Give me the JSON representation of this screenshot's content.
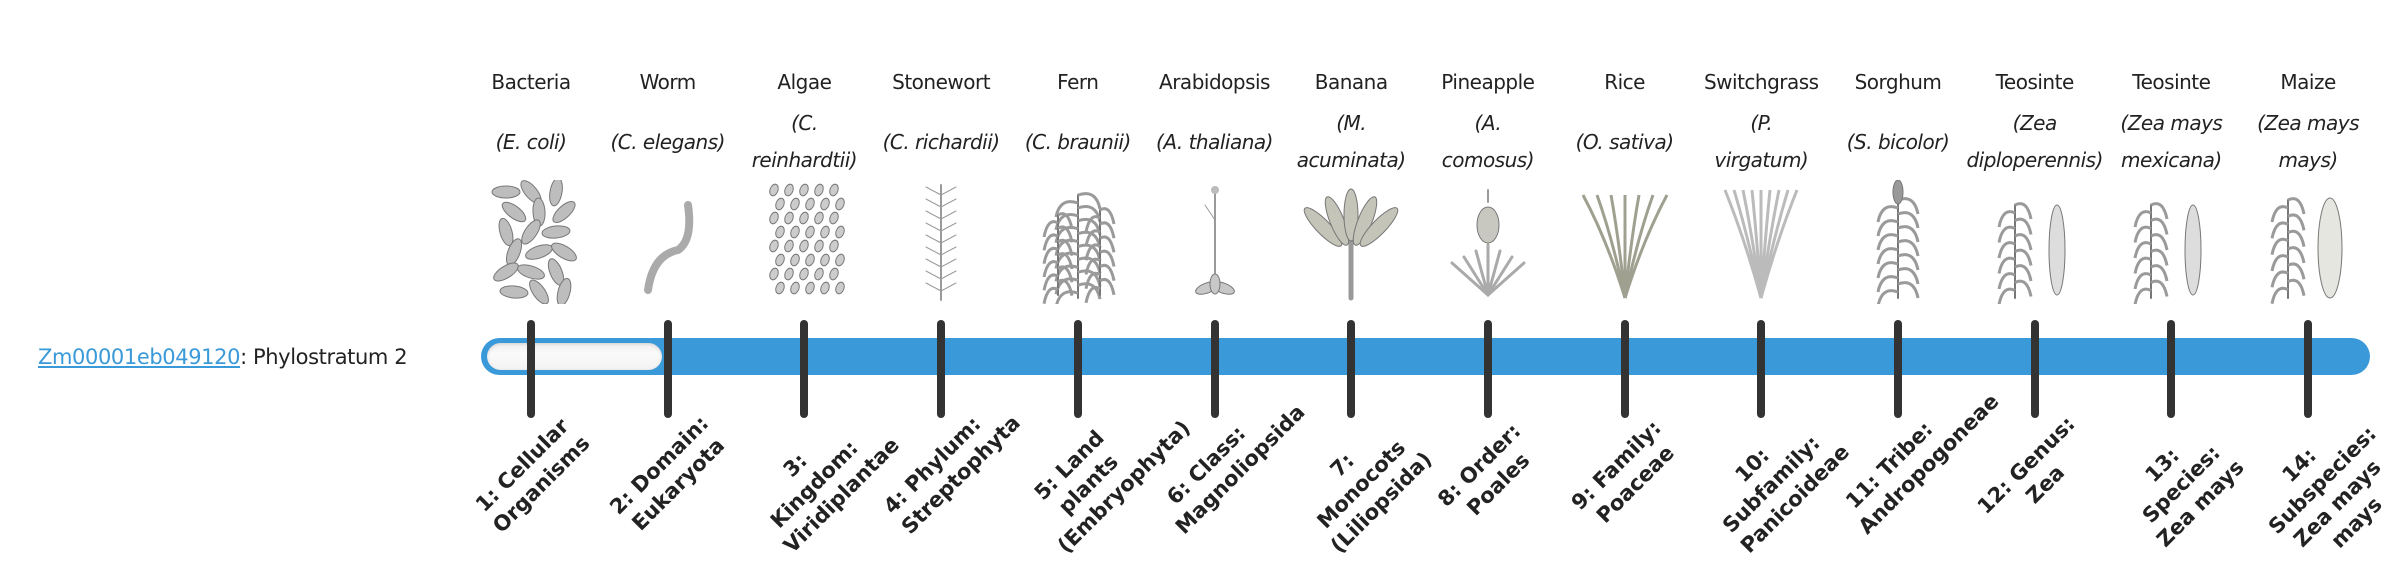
{
  "gene": {
    "id": "Zm00001eb049120",
    "suffix": ": Phylostratum 2",
    "phylostratum": 2
  },
  "colors": {
    "accent": "#3a9ad9",
    "tick": "#333333",
    "empty": "#f5f5f5"
  },
  "organisms": [
    {
      "common": "Bacteria",
      "sci": [
        "(E. coli)"
      ],
      "icon": "bacteria-icon"
    },
    {
      "common": "Worm",
      "sci": [
        "(C. elegans)"
      ],
      "icon": "worm-icon"
    },
    {
      "common": "Algae",
      "sci": [
        "(C.",
        "reinhardtii)"
      ],
      "icon": "algae-icon"
    },
    {
      "common": "Stonewort",
      "sci": [
        "(C. richardii)"
      ],
      "icon": "stonewort-icon"
    },
    {
      "common": "Fern",
      "sci": [
        "(C. braunii)"
      ],
      "icon": "fern-icon"
    },
    {
      "common": "Arabidopsis",
      "sci": [
        "(A. thaliana)"
      ],
      "icon": "arabidopsis-icon"
    },
    {
      "common": "Banana",
      "sci": [
        "(M.",
        "acuminata)"
      ],
      "icon": "banana-icon"
    },
    {
      "common": "Pineapple",
      "sci": [
        "(A.",
        "comosus)"
      ],
      "icon": "pineapple-icon"
    },
    {
      "common": "Rice",
      "sci": [
        "(O. sativa)"
      ],
      "icon": "rice-icon"
    },
    {
      "common": "Switchgrass",
      "sci": [
        "(P.",
        "virgatum)"
      ],
      "icon": "switchgrass-icon"
    },
    {
      "common": "Sorghum",
      "sci": [
        "(S. bicolor)"
      ],
      "icon": "sorghum-icon"
    },
    {
      "common": "Teosinte",
      "sci": [
        "(Zea",
        "diploperennis)"
      ],
      "icon": "teosinte-icon"
    },
    {
      "common": "Teosinte",
      "sci": [
        "(Zea mays",
        "mexicana)"
      ],
      "icon": "teosinte-icon"
    },
    {
      "common": "Maize",
      "sci": [
        "(Zea mays",
        "mays)"
      ],
      "icon": "maize-icon"
    }
  ],
  "strata": [
    "1: Cellular Organisms",
    "2: Domain: Eukaryota",
    "3: Kingdom: Viridiplantae",
    "4: Phylum: Streptophyta",
    "5: Land plants (Embryophyta)",
    "6: Class: Magnoliopsida",
    "7: Monocots (Liliopsida)",
    "8: Order: Poales",
    "9: Family: Poaceae",
    "10: Subfamily: Panicoideae",
    "11: Tribe: Andropogoneae",
    "12: Genus: Zea",
    "13: Species: Zea mays",
    "14: Subspecies: Zea mays mays"
  ]
}
